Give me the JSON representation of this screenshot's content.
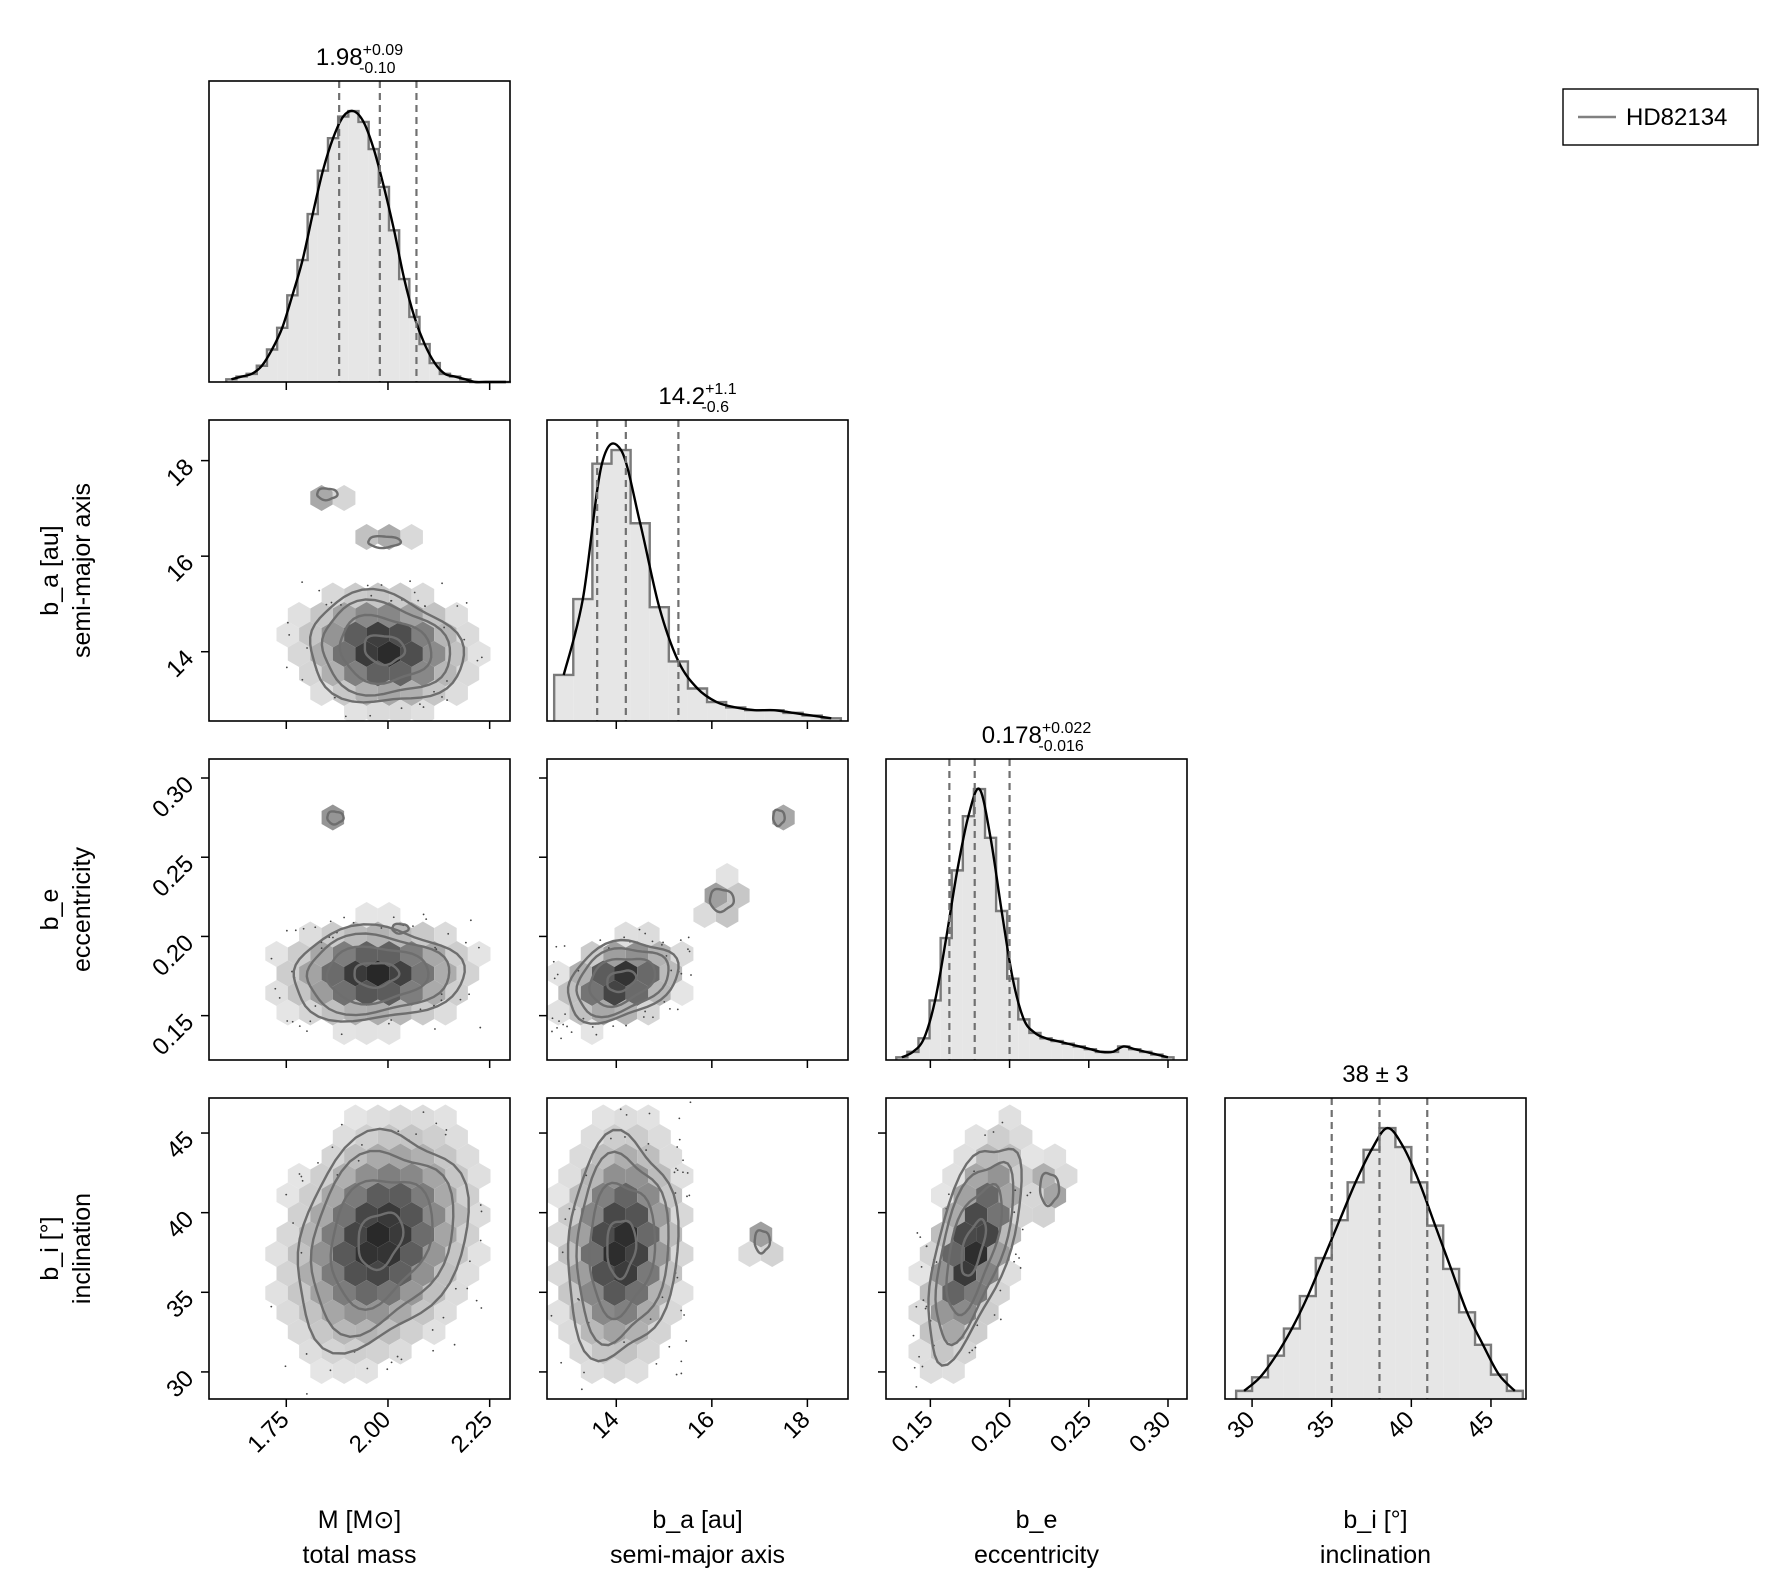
{
  "chart_data": {
    "type": "corner",
    "legend": {
      "label": "HD82134",
      "placement": "top-right"
    },
    "params": [
      {
        "id": "M",
        "label": "M [M⊙]",
        "desc": "total mass",
        "range": [
          1.56,
          2.3
        ],
        "ticks": [
          1.75,
          2.0,
          2.25
        ],
        "tick_labels": [
          "1.75",
          "2.00",
          "2.25"
        ],
        "median": 1.98,
        "plus": 0.09,
        "minus": 0.1,
        "title_main": "1.98",
        "title_sup": "+0.09",
        "title_sub": "-0.10",
        "hist_x": [
          1.615,
          1.64,
          1.665,
          1.69,
          1.715,
          1.74,
          1.765,
          1.79,
          1.815,
          1.84,
          1.865,
          1.89,
          1.915,
          1.94,
          1.965,
          1.99,
          2.015,
          2.04,
          2.065,
          2.09,
          2.115,
          2.14,
          2.165,
          2.19,
          2.215,
          2.24,
          2.265,
          2.29
        ],
        "hist_v": [
          0.01,
          0.02,
          0.03,
          0.06,
          0.12,
          0.2,
          0.32,
          0.45,
          0.62,
          0.78,
          0.9,
          0.98,
          1.0,
          0.96,
          0.86,
          0.72,
          0.56,
          0.38,
          0.24,
          0.14,
          0.07,
          0.03,
          0.02,
          0.01,
          0.0,
          0.0,
          0.0,
          0.0
        ]
      },
      {
        "id": "b_a",
        "label": "b_a [au]",
        "desc": "semi-major axis",
        "range": [
          12.55,
          18.85
        ],
        "ticks": [
          14,
          16,
          18
        ],
        "tick_labels": [
          "14",
          "16",
          "18"
        ],
        "median": 14.2,
        "plus": 1.1,
        "minus": 0.6,
        "title_main": "14.2",
        "title_sup": "+1.1",
        "title_sub": "-0.6",
        "hist_x": [
          12.9,
          13.3,
          13.7,
          14.1,
          14.5,
          14.9,
          15.3,
          15.7,
          16.1,
          16.5,
          16.9,
          17.3,
          17.7,
          18.1,
          18.5
        ],
        "hist_v": [
          0.17,
          0.45,
          0.95,
          1.0,
          0.73,
          0.42,
          0.22,
          0.12,
          0.07,
          0.05,
          0.04,
          0.04,
          0.03,
          0.02,
          0.01
        ]
      },
      {
        "id": "b_e",
        "label": "b_e",
        "desc": "eccentricity",
        "range": [
          0.122,
          0.312
        ],
        "ticks": [
          0.15,
          0.2,
          0.25,
          0.3
        ],
        "tick_labels": [
          "0.15",
          "0.20",
          "0.25",
          "0.30"
        ],
        "median": 0.178,
        "plus": 0.022,
        "minus": 0.016,
        "title_main": "0.178",
        "title_sup": "+0.022",
        "title_sub": "-0.016",
        "hist_x": [
          0.132,
          0.139,
          0.146,
          0.153,
          0.16,
          0.167,
          0.174,
          0.181,
          0.188,
          0.195,
          0.202,
          0.209,
          0.216,
          0.223,
          0.23,
          0.237,
          0.244,
          0.251,
          0.258,
          0.265,
          0.272,
          0.279,
          0.286,
          0.293,
          0.3
        ],
        "hist_v": [
          0.01,
          0.03,
          0.08,
          0.22,
          0.45,
          0.7,
          0.9,
          1.0,
          0.82,
          0.55,
          0.3,
          0.15,
          0.1,
          0.08,
          0.07,
          0.06,
          0.05,
          0.04,
          0.03,
          0.03,
          0.05,
          0.04,
          0.03,
          0.02,
          0.01
        ]
      },
      {
        "id": "b_i",
        "label": "b_i [°]",
        "desc": "inclination",
        "range": [
          28.3,
          47.2
        ],
        "ticks": [
          30,
          35,
          40,
          45
        ],
        "tick_labels": [
          "30",
          "35",
          "40",
          "45"
        ],
        "median": 38,
        "plus": 3,
        "minus": 3,
        "title_main": "38 ± 3",
        "title_sup": "",
        "title_sub": "",
        "hist_x": [
          29.5,
          30.5,
          31.5,
          32.5,
          33.5,
          34.5,
          35.5,
          36.5,
          37.5,
          38.5,
          39.5,
          40.5,
          41.5,
          42.5,
          43.5,
          44.5,
          45.5,
          46.5
        ],
        "hist_v": [
          0.03,
          0.08,
          0.16,
          0.26,
          0.38,
          0.52,
          0.66,
          0.8,
          0.92,
          1.0,
          0.93,
          0.8,
          0.64,
          0.48,
          0.32,
          0.2,
          0.09,
          0.03
        ]
      }
    ],
    "pairs": [
      {
        "x": "M",
        "y": "b_a",
        "center": [
          1.99,
          14.05
        ],
        "sigma": [
          0.09,
          0.55
        ],
        "rho": -0.1,
        "islands": [
          [
            1.85,
            17.3,
            0.025,
            0.12
          ],
          [
            1.99,
            16.3,
            0.04,
            0.12
          ]
        ]
      },
      {
        "x": "M",
        "y": "b_e",
        "center": [
          1.97,
          0.176
        ],
        "sigma": [
          0.1,
          0.014
        ],
        "rho": 0.05,
        "islands": [
          [
            1.87,
            0.275,
            0.02,
            0.004
          ],
          [
            2.03,
            0.205,
            0.02,
            0.003
          ]
        ]
      },
      {
        "x": "b_a",
        "y": "b_e",
        "center": [
          14.1,
          0.172
        ],
        "sigma": [
          0.55,
          0.012
        ],
        "rho": 0.3,
        "islands": [
          [
            16.2,
            0.223,
            0.25,
            0.007
          ],
          [
            17.4,
            0.275,
            0.12,
            0.005
          ]
        ]
      },
      {
        "x": "M",
        "y": "b_i",
        "center": [
          1.98,
          38.3
        ],
        "sigma": [
          0.1,
          3.2
        ],
        "rho": 0.25,
        "islands": []
      },
      {
        "x": "b_a",
        "y": "b_i",
        "center": [
          14.1,
          37.8
        ],
        "sigma": [
          0.55,
          3.3
        ],
        "rho": 0.1,
        "islands": [
          [
            17.05,
            38.2,
            0.16,
            0.7
          ]
        ]
      },
      {
        "x": "b_e",
        "y": "b_i",
        "center": [
          0.177,
          37.8
        ],
        "sigma": [
          0.014,
          3.2
        ],
        "rho": 0.6,
        "islands": [
          [
            0.225,
            41.5,
            0.006,
            1.0
          ]
        ]
      }
    ]
  }
}
